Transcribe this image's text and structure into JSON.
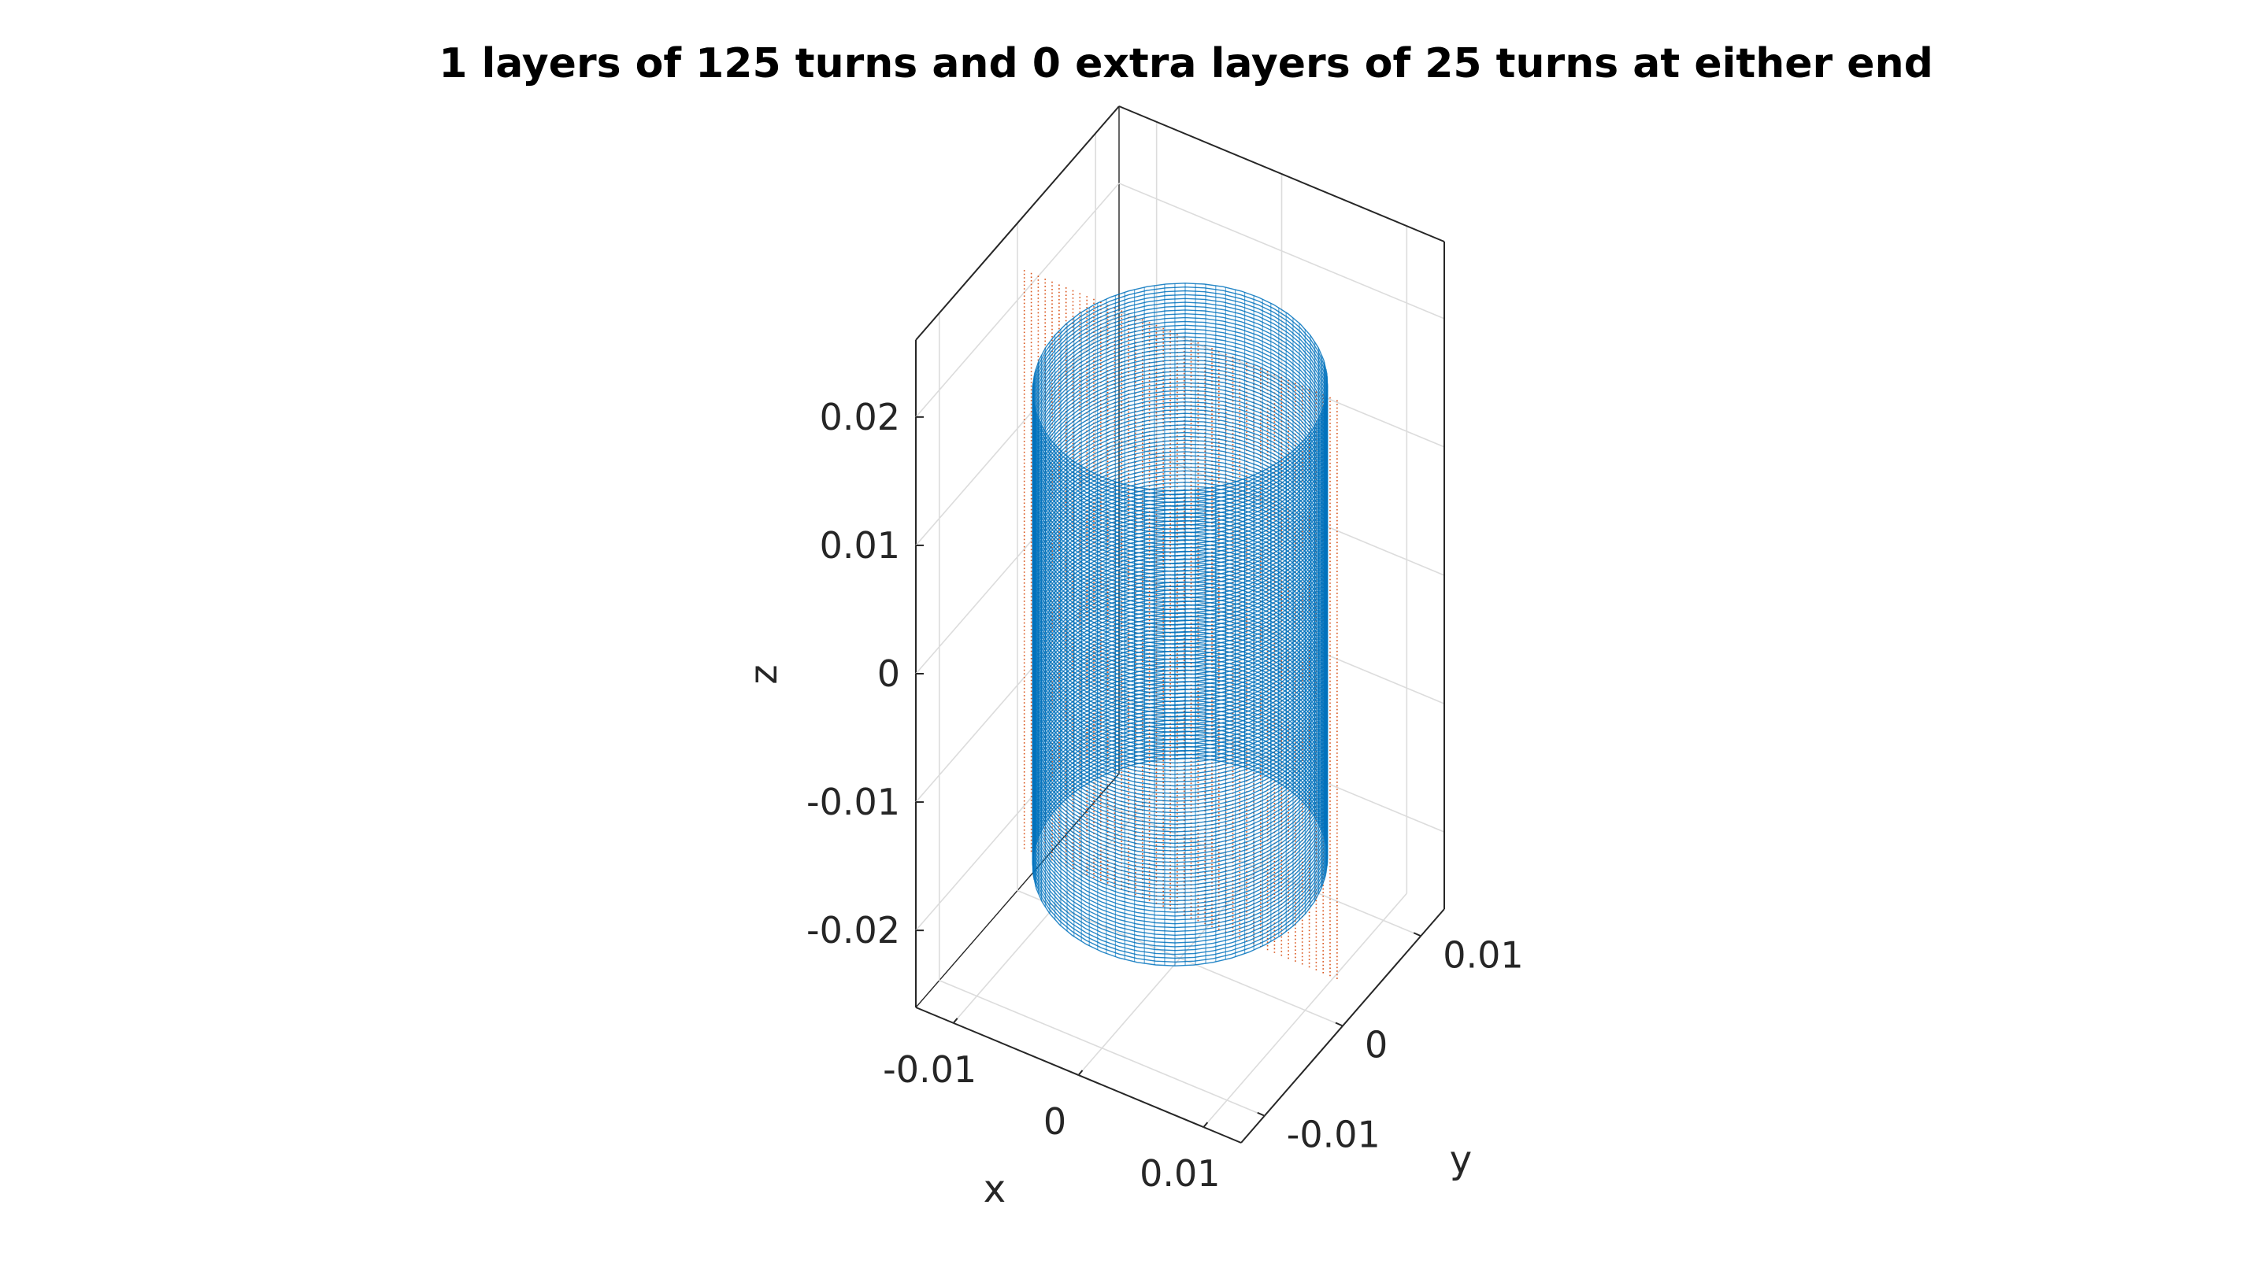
{
  "chart_data": {
    "type": "scatter",
    "projection": "3d",
    "title": "1 layers of 125 turns and 0 extra layers of 25 turns at either end",
    "xlabel": "x",
    "ylabel": "y",
    "zlabel": "z",
    "xlim": [
      -0.013,
      0.013
    ],
    "ylim": [
      -0.013,
      0.013
    ],
    "zlim": [
      -0.026,
      0.026
    ],
    "xticks": [
      {
        "value": -0.01,
        "label": "-0.01"
      },
      {
        "value": 0,
        "label": "0"
      },
      {
        "value": 0.01,
        "label": "0.01"
      }
    ],
    "yticks": [
      {
        "value": -0.01,
        "label": "-0.01"
      },
      {
        "value": 0,
        "label": "0"
      },
      {
        "value": 0.01,
        "label": "0.01"
      }
    ],
    "zticks": [
      {
        "value": -0.02,
        "label": "-0.02"
      },
      {
        "value": -0.01,
        "label": "-0.01"
      },
      {
        "value": 0,
        "label": "0"
      },
      {
        "value": 0.01,
        "label": "0.01"
      },
      {
        "value": 0.02,
        "label": "0.02"
      }
    ],
    "grid": true,
    "box": true,
    "series": [
      {
        "shape": "helical-coil",
        "color": "#0072BD",
        "radius": 0.01,
        "z_range": [
          -0.0185,
          0.0185
        ],
        "turns": 125
      },
      {
        "shape": "rectangular-point-grid",
        "color": "#D95319",
        "x_range": [
          -0.0125,
          0.0125
        ],
        "z_range": [
          -0.0225,
          0.0225
        ],
        "y": 0
      }
    ]
  }
}
